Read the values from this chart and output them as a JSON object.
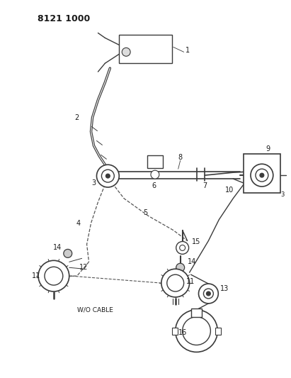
{
  "title": "8121 1000",
  "bg": "#ffffff",
  "lc": "#3a3a3a",
  "figsize": [
    4.11,
    5.33
  ],
  "dpi": 100,
  "wo_cable": "W/O CABLE"
}
